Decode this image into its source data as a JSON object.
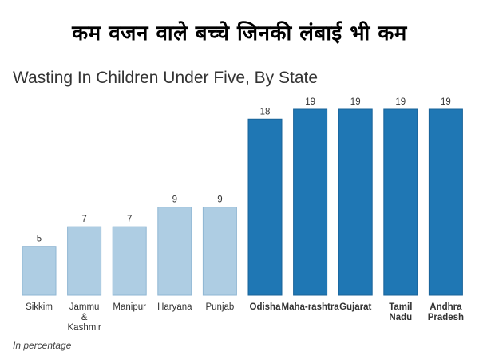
{
  "banner": "कम वजन वाले बच्चे जिनकी लंबाई भी कम",
  "footnote": "In percentage",
  "colors": {
    "light": "#aecde3",
    "dark": "#1f77b4"
  },
  "chart_data": {
    "type": "bar",
    "title": "Wasting In Children Under Five, By State",
    "categories": [
      {
        "lines": [
          "Sikkim"
        ],
        "bold": false
      },
      {
        "lines": [
          "Jammu",
          "&",
          "Kashmir"
        ],
        "bold": false
      },
      {
        "lines": [
          "Manipur"
        ],
        "bold": false
      },
      {
        "lines": [
          "Haryana"
        ],
        "bold": false
      },
      {
        "lines": [
          "Punjab"
        ],
        "bold": false
      },
      {
        "lines": [
          "Odisha"
        ],
        "bold": true
      },
      {
        "lines": [
          "Maha-rashtra"
        ],
        "bold": true
      },
      {
        "lines": [
          "Gujarat"
        ],
        "bold": true
      },
      {
        "lines": [
          "Tamil",
          "Nadu"
        ],
        "bold": true
      },
      {
        "lines": [
          "Andhra",
          "Pradesh"
        ],
        "bold": true
      }
    ],
    "values": [
      5,
      7,
      7,
      9,
      9,
      18,
      19,
      19,
      19,
      19
    ],
    "highlight": [
      false,
      false,
      false,
      false,
      false,
      true,
      true,
      true,
      true,
      true
    ],
    "ylim": [
      0,
      20
    ],
    "unit": "In percentage",
    "grid": false
  }
}
